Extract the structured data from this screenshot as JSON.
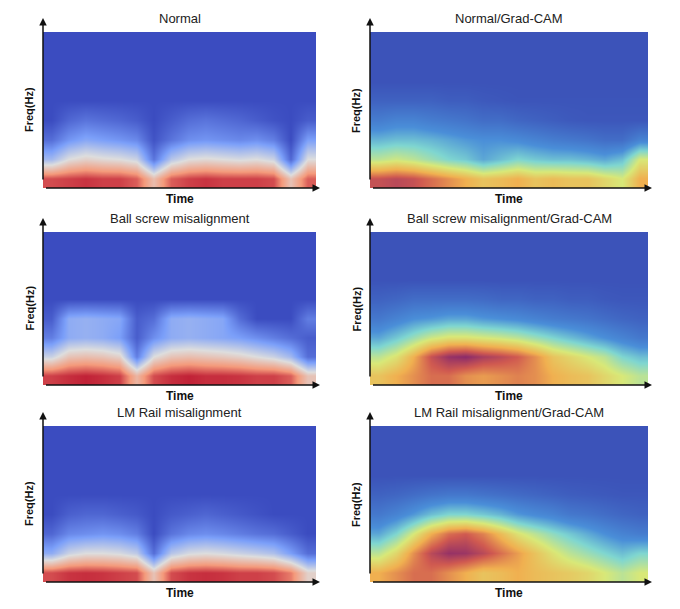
{
  "chart_data": [
    {
      "type": "heatmap",
      "title": "Normal",
      "x_label": "Time",
      "y_label": "Freq(Hz)",
      "tick_labels": false,
      "color": "coolwarm",
      "zlim": [
        0,
        1
      ],
      "z": [
        [
          0.88,
          0.9,
          0.92,
          0.9,
          0.9,
          0.85,
          0.62,
          0.85,
          0.9,
          0.92,
          0.9,
          0.9,
          0.9,
          0.88,
          0.6,
          0.85
        ],
        [
          0.35,
          0.5,
          0.55,
          0.52,
          0.5,
          0.45,
          0.12,
          0.4,
          0.5,
          0.52,
          0.5,
          0.48,
          0.5,
          0.45,
          0.08,
          0.5
        ],
        [
          0.1,
          0.22,
          0.28,
          0.25,
          0.22,
          0.18,
          0.02,
          0.12,
          0.2,
          0.22,
          0.2,
          0.18,
          0.2,
          0.15,
          0,
          0.25
        ],
        [
          0,
          0.08,
          0.12,
          0.1,
          0.08,
          0.05,
          0,
          0.05,
          0.1,
          0.12,
          0.1,
          0.08,
          0.05,
          0.02,
          0,
          0.05
        ],
        [
          0,
          0,
          0,
          0,
          0,
          0,
          0,
          0,
          0,
          0,
          0,
          0,
          0,
          0,
          0,
          0
        ],
        [
          0,
          0,
          0,
          0,
          0,
          0,
          0,
          0,
          0,
          0,
          0,
          0,
          0,
          0,
          0,
          0
        ],
        [
          0,
          0,
          0,
          0,
          0,
          0,
          0,
          0,
          0,
          0,
          0,
          0,
          0,
          0,
          0,
          0
        ],
        [
          0,
          0,
          0,
          0,
          0,
          0,
          0,
          0,
          0,
          0,
          0,
          0,
          0,
          0,
          0,
          0
        ]
      ]
    },
    {
      "type": "heatmap",
      "title": "Normal/Grad-CAM",
      "x_label": "Time",
      "y_label": "Freq(Hz)",
      "tick_labels": false,
      "color": "jet",
      "zlim": [
        0,
        1
      ],
      "z": [
        [
          0.9,
          0.92,
          0.9,
          0.85,
          0.8,
          0.75,
          0.7,
          0.72,
          0.75,
          0.7,
          0.72,
          0.7,
          0.7,
          0.65,
          0.6,
          0.75
        ],
        [
          0.55,
          0.58,
          0.55,
          0.5,
          0.45,
          0.42,
          0.35,
          0.4,
          0.45,
          0.42,
          0.4,
          0.4,
          0.38,
          0.35,
          0.4,
          0.6
        ],
        [
          0.38,
          0.4,
          0.4,
          0.38,
          0.35,
          0.32,
          0.3,
          0.3,
          0.28,
          0.25,
          0.22,
          0.2,
          0.18,
          0.15,
          0.15,
          0.25
        ],
        [
          0.22,
          0.25,
          0.25,
          0.22,
          0.2,
          0.18,
          0.15,
          0.15,
          0.12,
          0.1,
          0.08,
          0.06,
          0.05,
          0.05,
          0.05,
          0.05
        ],
        [
          0.1,
          0.1,
          0.1,
          0.1,
          0.08,
          0.08,
          0.06,
          0.05,
          0.04,
          0.04,
          0.04,
          0.04,
          0.04,
          0.04,
          0.04,
          0.04
        ],
        [
          0.03,
          0.03,
          0.03,
          0.03,
          0.03,
          0.03,
          0.03,
          0.03,
          0.03,
          0.03,
          0.03,
          0.03,
          0.03,
          0.03,
          0.03,
          0.03
        ],
        [
          0.03,
          0.03,
          0.03,
          0.03,
          0.03,
          0.03,
          0.03,
          0.03,
          0.03,
          0.03,
          0.03,
          0.03,
          0.03,
          0.03,
          0.03,
          0.03
        ],
        [
          0.03,
          0.03,
          0.03,
          0.03,
          0.03,
          0.03,
          0.03,
          0.03,
          0.03,
          0.03,
          0.03,
          0.03,
          0.03,
          0.03,
          0.03,
          0.03
        ]
      ]
    },
    {
      "type": "heatmap",
      "title": "Ball screw misalignment",
      "x_label": "Time",
      "y_label": "Freq(Hz)",
      "tick_labels": false,
      "color": "coolwarm",
      "zlim": [
        0,
        1
      ],
      "z": [
        [
          0.9,
          0.93,
          0.95,
          0.93,
          0.9,
          0.65,
          0.88,
          0.93,
          0.95,
          0.93,
          0.93,
          0.92,
          0.9,
          0.9,
          0.85,
          0.6
        ],
        [
          0.45,
          0.6,
          0.62,
          0.6,
          0.55,
          0.15,
          0.5,
          0.6,
          0.62,
          0.6,
          0.58,
          0.55,
          0.5,
          0.45,
          0.35,
          0.1
        ],
        [
          0.15,
          0.3,
          0.32,
          0.3,
          0.25,
          0.05,
          0.2,
          0.3,
          0.32,
          0.3,
          0.28,
          0.25,
          0.2,
          0.15,
          0.1,
          0.05
        ],
        [
          0.05,
          0.3,
          0.32,
          0.3,
          0.28,
          0.05,
          0.1,
          0.3,
          0.32,
          0.3,
          0.28,
          0.1,
          0,
          0,
          0,
          0.15
        ],
        [
          0,
          0,
          0,
          0,
          0,
          0,
          0,
          0,
          0,
          0,
          0,
          0,
          0,
          0,
          0,
          0
        ],
        [
          0,
          0,
          0,
          0,
          0,
          0,
          0,
          0,
          0,
          0,
          0,
          0,
          0,
          0,
          0,
          0
        ],
        [
          0,
          0,
          0,
          0,
          0,
          0,
          0,
          0,
          0,
          0,
          0,
          0,
          0,
          0,
          0,
          0
        ],
        [
          0,
          0,
          0,
          0,
          0,
          0,
          0,
          0,
          0,
          0,
          0,
          0,
          0,
          0,
          0,
          0
        ]
      ]
    },
    {
      "type": "heatmap",
      "title": "Ball screw misalignment/Grad-CAM",
      "x_label": "Time",
      "y_label": "Freq(Hz)",
      "tick_labels": false,
      "color": "jet",
      "zlim": [
        0,
        1
      ],
      "z": [
        [
          0.7,
          0.75,
          0.8,
          0.85,
          0.85,
          0.8,
          0.78,
          0.8,
          0.82,
          0.8,
          0.75,
          0.72,
          0.7,
          0.65,
          0.6,
          0.55
        ],
        [
          0.55,
          0.62,
          0.75,
          0.9,
          0.98,
          1,
          0.95,
          0.92,
          0.88,
          0.8,
          0.7,
          0.65,
          0.6,
          0.55,
          0.45,
          0.4
        ],
        [
          0.35,
          0.42,
          0.5,
          0.58,
          0.62,
          0.62,
          0.6,
          0.58,
          0.55,
          0.5,
          0.45,
          0.4,
          0.35,
          0.3,
          0.25,
          0.2
        ],
        [
          0.2,
          0.25,
          0.3,
          0.32,
          0.35,
          0.35,
          0.32,
          0.3,
          0.28,
          0.25,
          0.22,
          0.2,
          0.18,
          0.15,
          0.12,
          0.1
        ],
        [
          0.1,
          0.12,
          0.15,
          0.15,
          0.15,
          0.15,
          0.14,
          0.12,
          0.12,
          0.1,
          0.1,
          0.08,
          0.08,
          0.06,
          0.05,
          0.05
        ],
        [
          0.03,
          0.03,
          0.03,
          0.03,
          0.03,
          0.03,
          0.03,
          0.03,
          0.03,
          0.03,
          0.03,
          0.03,
          0.03,
          0.03,
          0.03,
          0.03
        ],
        [
          0.03,
          0.03,
          0.03,
          0.03,
          0.03,
          0.03,
          0.03,
          0.03,
          0.03,
          0.03,
          0.03,
          0.03,
          0.03,
          0.03,
          0.03,
          0.03
        ],
        [
          0.03,
          0.03,
          0.03,
          0.03,
          0.03,
          0.03,
          0.03,
          0.03,
          0.03,
          0.03,
          0.03,
          0.03,
          0.03,
          0.03,
          0.03,
          0.03
        ]
      ]
    },
    {
      "type": "heatmap",
      "title": "LM Rail misalignment",
      "x_label": "Time",
      "y_label": "Freq(Hz)",
      "tick_labels": false,
      "color": "coolwarm",
      "zlim": [
        0,
        1
      ],
      "z": [
        [
          0.88,
          0.92,
          0.93,
          0.92,
          0.9,
          0.88,
          0.6,
          0.88,
          0.92,
          0.93,
          0.92,
          0.9,
          0.9,
          0.88,
          0.8,
          0.55
        ],
        [
          0.3,
          0.45,
          0.5,
          0.5,
          0.48,
          0.42,
          0.1,
          0.4,
          0.48,
          0.5,
          0.48,
          0.45,
          0.42,
          0.38,
          0.25,
          0.1
        ],
        [
          0.08,
          0.18,
          0.2,
          0.22,
          0.2,
          0.15,
          0,
          0.12,
          0.18,
          0.2,
          0.18,
          0.15,
          0.12,
          0.1,
          0.05,
          0
        ],
        [
          0,
          0.06,
          0.08,
          0.08,
          0.06,
          0.04,
          0,
          0.04,
          0.06,
          0.08,
          0.06,
          0.04,
          0.02,
          0,
          0,
          0
        ],
        [
          0,
          0,
          0,
          0,
          0,
          0,
          0,
          0,
          0,
          0,
          0,
          0,
          0,
          0,
          0,
          0
        ],
        [
          0,
          0,
          0,
          0,
          0,
          0,
          0,
          0,
          0,
          0,
          0,
          0,
          0,
          0,
          0,
          0
        ],
        [
          0,
          0,
          0,
          0,
          0,
          0,
          0,
          0,
          0,
          0,
          0,
          0,
          0,
          0,
          0,
          0
        ],
        [
          0,
          0,
          0,
          0,
          0,
          0,
          0,
          0,
          0,
          0,
          0,
          0,
          0,
          0,
          0,
          0
        ]
      ]
    },
    {
      "type": "heatmap",
      "title": "LM Rail misalignment/Grad-CAM",
      "x_label": "Time",
      "y_label": "Freq(Hz)",
      "tick_labels": false,
      "color": "jet",
      "zlim": [
        0,
        1
      ],
      "z": [
        [
          0.75,
          0.8,
          0.85,
          0.85,
          0.8,
          0.75,
          0.7,
          0.72,
          0.75,
          0.72,
          0.7,
          0.68,
          0.65,
          0.6,
          0.55,
          0.6
        ],
        [
          0.55,
          0.65,
          0.8,
          0.92,
          0.98,
          0.97,
          0.92,
          0.85,
          0.78,
          0.7,
          0.62,
          0.55,
          0.5,
          0.45,
          0.4,
          0.45
        ],
        [
          0.35,
          0.45,
          0.6,
          0.75,
          0.85,
          0.88,
          0.82,
          0.72,
          0.62,
          0.55,
          0.48,
          0.42,
          0.36,
          0.3,
          0.25,
          0.22
        ],
        [
          0.2,
          0.25,
          0.32,
          0.4,
          0.45,
          0.45,
          0.42,
          0.38,
          0.32,
          0.28,
          0.25,
          0.2,
          0.18,
          0.15,
          0.12,
          0.1
        ],
        [
          0.1,
          0.12,
          0.15,
          0.18,
          0.2,
          0.2,
          0.18,
          0.16,
          0.14,
          0.12,
          0.1,
          0.08,
          0.07,
          0.06,
          0.05,
          0.05
        ],
        [
          0.03,
          0.03,
          0.03,
          0.03,
          0.03,
          0.03,
          0.03,
          0.03,
          0.03,
          0.03,
          0.03,
          0.03,
          0.03,
          0.03,
          0.03,
          0.03
        ],
        [
          0.03,
          0.03,
          0.03,
          0.03,
          0.03,
          0.03,
          0.03,
          0.03,
          0.03,
          0.03,
          0.03,
          0.03,
          0.03,
          0.03,
          0.03,
          0.03
        ],
        [
          0.03,
          0.03,
          0.03,
          0.03,
          0.03,
          0.03,
          0.03,
          0.03,
          0.03,
          0.03,
          0.03,
          0.03,
          0.03,
          0.03,
          0.03,
          0.03
        ]
      ]
    }
  ]
}
